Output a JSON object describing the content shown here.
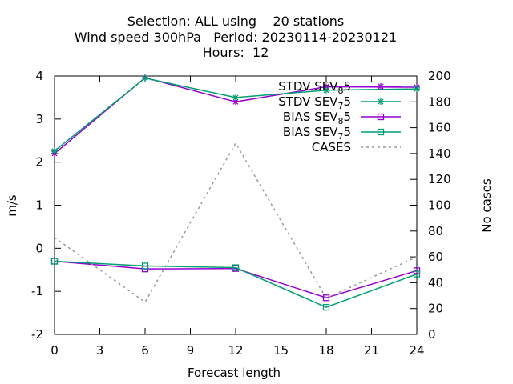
{
  "chart_data": {
    "type": "line",
    "title": [
      "Selection: ALL using    20 stations",
      "Wind speed 300hPa   Period: 20230114-20230121",
      "Hours:  12"
    ],
    "xlabel": "Forecast length",
    "ylabel": "m/s",
    "y2label": "No cases",
    "x": [
      0,
      6,
      12,
      18,
      24
    ],
    "xticks": [
      0,
      3,
      6,
      9,
      12,
      15,
      18,
      21,
      24
    ],
    "xlim": [
      0,
      24
    ],
    "ylim": [
      -2,
      4
    ],
    "yticks": [
      -2,
      -1,
      0,
      1,
      2,
      3,
      4
    ],
    "y2lim": [
      0,
      200
    ],
    "y2ticks": [
      0,
      20,
      40,
      60,
      80,
      100,
      120,
      140,
      160,
      180,
      200
    ],
    "grid": false,
    "legend_position": "top-right",
    "series": [
      {
        "name": "STDV SEV",
        "sub": "8",
        "suffix": "5",
        "axis": "y",
        "marker": "star",
        "color": "#9400d3",
        "dashed": false,
        "values": [
          2.2,
          3.96,
          3.4,
          3.75,
          3.74
        ]
      },
      {
        "name": "STDV SEV",
        "sub": "7",
        "suffix": "5",
        "axis": "y",
        "marker": "star",
        "color": "#009e73",
        "dashed": false,
        "values": [
          2.26,
          3.95,
          3.5,
          3.67,
          3.7
        ]
      },
      {
        "name": "BIAS SEV",
        "sub": "8",
        "suffix": "5",
        "axis": "y",
        "marker": "square",
        "color": "#9400d3",
        "dashed": false,
        "values": [
          -0.3,
          -0.48,
          -0.47,
          -1.15,
          -0.52
        ]
      },
      {
        "name": "BIAS SEV",
        "sub": "7",
        "suffix": "5",
        "axis": "y",
        "marker": "square",
        "color": "#009e73",
        "dashed": false,
        "values": [
          -0.3,
          -0.41,
          -0.45,
          -1.37,
          -0.6
        ]
      },
      {
        "name": "CASES",
        "sub": "",
        "suffix": "",
        "axis": "y2",
        "marker": "none",
        "color": "#999999",
        "dashed": true,
        "values": [
          75,
          25,
          148,
          28,
          60
        ]
      }
    ]
  }
}
